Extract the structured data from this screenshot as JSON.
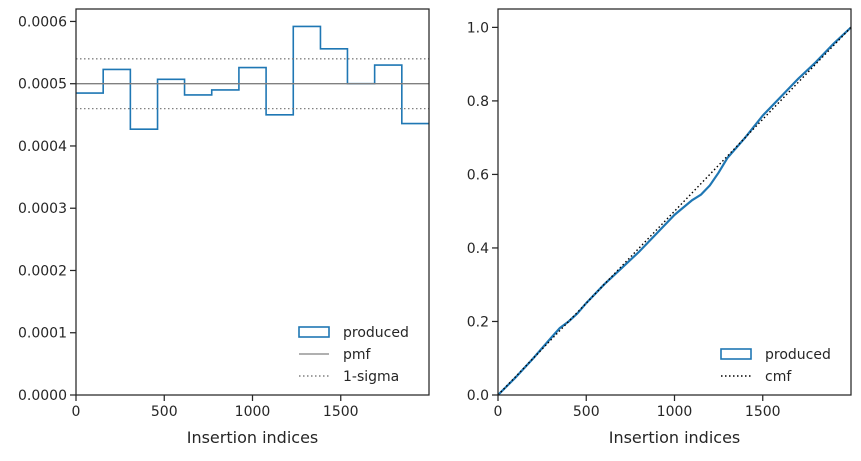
{
  "chart_data": [
    {
      "type": "histogram-step",
      "xlabel": "Insertion indices",
      "ylabel": "",
      "xlim": [
        0,
        2000
      ],
      "ylim": [
        0,
        0.00062
      ],
      "xticks": [
        0,
        500,
        1000,
        1500
      ],
      "xtick_labels": [
        "0",
        "500",
        "1000",
        "1500"
      ],
      "yticks": [
        0,
        0.0001,
        0.0002,
        0.0003,
        0.0004,
        0.0005,
        0.0006
      ],
      "ytick_labels": [
        "0.0000",
        "0.0001",
        "0.0002",
        "0.0003",
        "0.0004",
        "0.0005",
        "0.0006"
      ],
      "bin_edges": [
        0,
        154,
        308,
        462,
        615,
        769,
        923,
        1077,
        1231,
        1385,
        1538,
        1692,
        1846,
        2000
      ],
      "series": [
        {
          "name": "produced",
          "kind": "step",
          "color": "#1f77b4",
          "values": [
            0.000485,
            0.000523,
            0.000427,
            0.000507,
            0.000482,
            0.00049,
            0.000526,
            0.00045,
            0.000592,
            0.000556,
            0.0005,
            0.00053,
            0.000436
          ]
        },
        {
          "name": "pmf",
          "kind": "hline",
          "color": "#808080",
          "value": 0.0005
        },
        {
          "name": "1-sigma",
          "kind": "hline-dotted",
          "color": "#808080",
          "values": [
            0.00046,
            0.00054
          ]
        }
      ],
      "grid": false,
      "legend_position": "lower-right"
    },
    {
      "type": "line",
      "xlabel": "Insertion indices",
      "ylabel": "",
      "xlim": [
        0,
        2000
      ],
      "ylim": [
        0,
        1.05
      ],
      "xticks": [
        0,
        500,
        1000,
        1500
      ],
      "xtick_labels": [
        "0",
        "500",
        "1000",
        "1500"
      ],
      "yticks": [
        0,
        0.2,
        0.4,
        0.6,
        0.8,
        1.0
      ],
      "ytick_labels": [
        "0.0",
        "0.2",
        "0.4",
        "0.6",
        "0.8",
        "1.0"
      ],
      "series": [
        {
          "name": "produced",
          "kind": "cumulative",
          "color": "#1f77b4",
          "x": [
            0,
            100,
            200,
            300,
            350,
            400,
            450,
            500,
            600,
            700,
            800,
            900,
            1000,
            1100,
            1150,
            1200,
            1250,
            1300,
            1400,
            1500,
            1600,
            1700,
            1800,
            1900,
            2000
          ],
          "y": [
            0,
            0.048,
            0.1,
            0.155,
            0.182,
            0.2,
            0.222,
            0.25,
            0.3,
            0.345,
            0.39,
            0.44,
            0.49,
            0.53,
            0.545,
            0.57,
            0.605,
            0.645,
            0.7,
            0.76,
            0.81,
            0.86,
            0.905,
            0.955,
            1.0
          ]
        },
        {
          "name": "cmf",
          "kind": "dotted-line",
          "color": "#000000",
          "x": [
            0,
            2000
          ],
          "y": [
            0,
            1.0
          ]
        }
      ],
      "grid": false,
      "legend_position": "lower-right"
    }
  ]
}
